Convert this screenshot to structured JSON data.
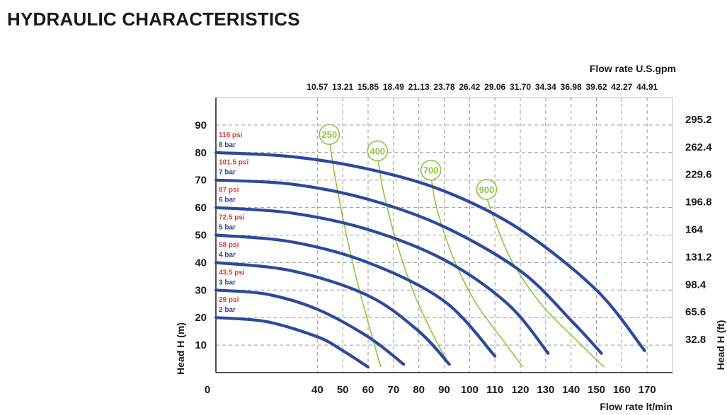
{
  "page": {
    "title": "HYDRAULIC CHARACTERISTICS"
  },
  "chart_data": {
    "type": "line",
    "title": "",
    "xlabel": "Flow rate  lt/min",
    "x2label": "Flow rate U.S.gpm",
    "ylabel": "Head H (m)",
    "y2label": "Head H (ft)",
    "xlim": [
      0,
      180
    ],
    "ylim": [
      0,
      100
    ],
    "grid": true,
    "x_ticks": [
      0,
      40,
      50,
      60,
      70,
      80,
      90,
      100,
      110,
      120,
      130,
      140,
      150,
      160,
      170
    ],
    "x_tick_labels": [
      "0",
      "40",
      "50",
      "60",
      "70",
      "80",
      "90",
      "100",
      "110",
      "120",
      "130",
      "140",
      "150",
      "160",
      "170"
    ],
    "y_ticks": [
      10,
      20,
      30,
      40,
      50,
      60,
      70,
      80,
      90
    ],
    "y_tick_labels": [
      "10",
      "20",
      "30",
      "40",
      "50",
      "60",
      "70",
      "80",
      "90"
    ],
    "x2_ticks": [
      40,
      50,
      60,
      70,
      80,
      90,
      100,
      110,
      120,
      130,
      140,
      150,
      160,
      170
    ],
    "x2_tick_labels": [
      "10.57",
      "13.21",
      "15.85",
      "18.49",
      "21.13",
      "23.78",
      "26.42",
      "29.06",
      "31.70",
      "34.34",
      "36.98",
      "39.62",
      "42.27",
      "44.91"
    ],
    "y2_ticks": [
      10,
      20,
      30,
      40,
      50,
      60,
      70,
      80,
      90
    ],
    "y2_tick_labels": [
      "32.8",
      "65.6",
      "98.4",
      "131.2",
      "164",
      "196.8",
      "229.6",
      "262.4",
      "295.2"
    ],
    "pressure_labels": [
      {
        "psi": "116 psi",
        "bar": "8 bar",
        "level": 80
      },
      {
        "psi": "101.5 psi",
        "bar": "7 bar",
        "level": 70
      },
      {
        "psi": "87 psi",
        "bar": "6 bar",
        "level": 60
      },
      {
        "psi": "72.5 psi",
        "bar": "5 bar",
        "level": 50
      },
      {
        "psi": "58 psi",
        "bar": "4 bar",
        "level": 40
      },
      {
        "psi": "43.5 psi",
        "bar": "3 bar",
        "level": 30
      },
      {
        "psi": "29 psi",
        "bar": "2 bar",
        "level": 20
      }
    ],
    "series": [
      {
        "pressure": "8 bar",
        "x": [
          0,
          30,
          60,
          90,
          120,
          150,
          169
        ],
        "y": [
          80,
          78.5,
          74,
          66,
          52,
          30,
          8
        ]
      },
      {
        "pressure": "7 bar",
        "x": [
          0,
          30,
          60,
          90,
          120,
          140,
          152
        ],
        "y": [
          70,
          68.5,
          63,
          53,
          37,
          19,
          7
        ]
      },
      {
        "pressure": "6 bar",
        "x": [
          0,
          30,
          60,
          90,
          115,
          131
        ],
        "y": [
          60,
          58,
          52,
          41,
          25,
          7
        ]
      },
      {
        "pressure": "5 bar",
        "x": [
          0,
          30,
          60,
          90,
          110
        ],
        "y": [
          50,
          47.5,
          40,
          26,
          6
        ]
      },
      {
        "pressure": "4 bar",
        "x": [
          0,
          30,
          60,
          80,
          92
        ],
        "y": [
          40,
          37,
          28,
          15,
          3
        ]
      },
      {
        "pressure": "3 bar",
        "x": [
          0,
          20,
          40,
          60,
          74
        ],
        "y": [
          30,
          28.5,
          23,
          13,
          3
        ]
      },
      {
        "pressure": "2 bar",
        "x": [
          0,
          20,
          40,
          50,
          60
        ],
        "y": [
          20,
          18.5,
          13,
          8,
          2
        ]
      }
    ],
    "efficiency_curves": [
      {
        "label": "250",
        "x": [
          45,
          47,
          51,
          56,
          61,
          65
        ],
        "y": [
          83,
          71,
          52,
          32,
          15,
          2
        ]
      },
      {
        "label": "400",
        "x": [
          64,
          66,
          71,
          78,
          86,
          92
        ],
        "y": [
          77,
          66,
          48,
          29,
          13,
          3
        ]
      },
      {
        "label": "700",
        "x": [
          85,
          87,
          93,
          102,
          113,
          121
        ],
        "y": [
          70,
          60,
          43,
          26,
          12,
          2
        ]
      },
      {
        "label": "900",
        "x": [
          107,
          110,
          117,
          129,
          143,
          153
        ],
        "y": [
          63,
          55,
          40,
          24,
          11,
          2
        ]
      }
    ],
    "colors": {
      "pressure_curve": "#2b4a9e",
      "efficiency_curve": "#8cc63e",
      "psi_label": "#e03a2e",
      "bar_label": "#2b4a9e",
      "grid": "#9a9a9a",
      "axis": "#1a1a1a"
    }
  }
}
